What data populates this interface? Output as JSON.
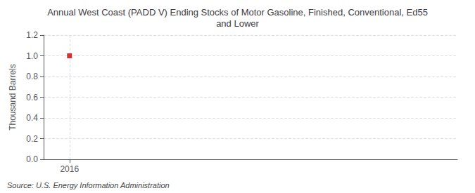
{
  "chart_data": {
    "type": "scatter",
    "title": "Annual West Coast (PADD V) Ending Stocks of Motor Gasoline, Finished, Conventional, Ed55\nand Lower",
    "ylabel": "Thousand Barrels",
    "annotations": [
      "Source: U.S. Energy Information Administration"
    ],
    "x": [
      2016
    ],
    "values": [
      1.0
    ],
    "color": "#cc0000",
    "marker": "square",
    "xlim": [
      2015.6,
      2022.0
    ],
    "xticks": [
      2016
    ],
    "ylim": [
      0.0,
      1.2
    ],
    "yticks": [
      {
        "value": 0.0,
        "label": "0.0"
      },
      0.2,
      0.4,
      0.6,
      0.8,
      {
        "value": 1.0,
        "label": "1.0"
      },
      1.2
    ],
    "grid": true
  }
}
